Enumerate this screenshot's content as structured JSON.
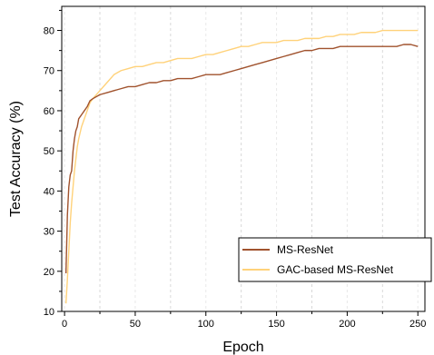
{
  "chart_data": {
    "type": "line",
    "title": "",
    "xlabel": "Epoch",
    "ylabel": "Test Accuracy (%)",
    "xlim": [
      -2,
      255
    ],
    "ylim": [
      10,
      86
    ],
    "xticks": [
      0,
      50,
      100,
      150,
      200,
      250
    ],
    "yticks": [
      10,
      20,
      30,
      40,
      50,
      60,
      70,
      80
    ],
    "grid": "vertical dashed",
    "legend_position": "bottom-right",
    "series": [
      {
        "name": "MS-ResNet",
        "color": "#a0522d",
        "points": [
          [
            1,
            19.5
          ],
          [
            2,
            34
          ],
          [
            3,
            41
          ],
          [
            4,
            44
          ],
          [
            5,
            45
          ],
          [
            6,
            50
          ],
          [
            7,
            53
          ],
          [
            8,
            55
          ],
          [
            9,
            56
          ],
          [
            10,
            58
          ],
          [
            12,
            59
          ],
          [
            14,
            60
          ],
          [
            16,
            61
          ],
          [
            18,
            62.5
          ],
          [
            20,
            63
          ],
          [
            25,
            64
          ],
          [
            30,
            64.5
          ],
          [
            35,
            65
          ],
          [
            40,
            65.5
          ],
          [
            45,
            66
          ],
          [
            50,
            66
          ],
          [
            55,
            66.5
          ],
          [
            60,
            67
          ],
          [
            65,
            67
          ],
          [
            70,
            67.5
          ],
          [
            75,
            67.5
          ],
          [
            80,
            68
          ],
          [
            85,
            68
          ],
          [
            90,
            68
          ],
          [
            95,
            68.5
          ],
          [
            100,
            69
          ],
          [
            105,
            69
          ],
          [
            110,
            69
          ],
          [
            115,
            69.5
          ],
          [
            120,
            70
          ],
          [
            125,
            70.5
          ],
          [
            130,
            71
          ],
          [
            135,
            71.5
          ],
          [
            140,
            72
          ],
          [
            145,
            72.5
          ],
          [
            150,
            73
          ],
          [
            155,
            73.5
          ],
          [
            160,
            74
          ],
          [
            165,
            74.5
          ],
          [
            170,
            75
          ],
          [
            175,
            75
          ],
          [
            180,
            75.5
          ],
          [
            185,
            75.5
          ],
          [
            190,
            75.5
          ],
          [
            195,
            76
          ],
          [
            200,
            76
          ],
          [
            205,
            76
          ],
          [
            210,
            76
          ],
          [
            215,
            76
          ],
          [
            220,
            76
          ],
          [
            225,
            76
          ],
          [
            230,
            76
          ],
          [
            235,
            76
          ],
          [
            240,
            76.5
          ],
          [
            245,
            76.5
          ],
          [
            250,
            76
          ]
        ]
      },
      {
        "name": "GAC-based MS-ResNet",
        "color": "#ffd27a",
        "points": [
          [
            1,
            12
          ],
          [
            2,
            18
          ],
          [
            3,
            25
          ],
          [
            4,
            32
          ],
          [
            5,
            37
          ],
          [
            6,
            41
          ],
          [
            7,
            45
          ],
          [
            8,
            48
          ],
          [
            9,
            51
          ],
          [
            10,
            53
          ],
          [
            12,
            56
          ],
          [
            14,
            58
          ],
          [
            16,
            60
          ],
          [
            18,
            62
          ],
          [
            20,
            63
          ],
          [
            25,
            65
          ],
          [
            30,
            67
          ],
          [
            35,
            69
          ],
          [
            40,
            70
          ],
          [
            45,
            70.5
          ],
          [
            50,
            71
          ],
          [
            55,
            71
          ],
          [
            60,
            71.5
          ],
          [
            65,
            72
          ],
          [
            70,
            72
          ],
          [
            75,
            72.5
          ],
          [
            80,
            73
          ],
          [
            85,
            73
          ],
          [
            90,
            73
          ],
          [
            95,
            73.5
          ],
          [
            100,
            74
          ],
          [
            105,
            74
          ],
          [
            110,
            74.5
          ],
          [
            115,
            75
          ],
          [
            120,
            75.5
          ],
          [
            125,
            76
          ],
          [
            130,
            76
          ],
          [
            135,
            76.5
          ],
          [
            140,
            77
          ],
          [
            145,
            77
          ],
          [
            150,
            77
          ],
          [
            155,
            77.5
          ],
          [
            160,
            77.5
          ],
          [
            165,
            77.5
          ],
          [
            170,
            78
          ],
          [
            175,
            78
          ],
          [
            180,
            78
          ],
          [
            185,
            78.5
          ],
          [
            190,
            78.5
          ],
          [
            195,
            79
          ],
          [
            200,
            79
          ],
          [
            205,
            79
          ],
          [
            210,
            79.5
          ],
          [
            215,
            79.5
          ],
          [
            220,
            79.5
          ],
          [
            225,
            80
          ],
          [
            230,
            80
          ],
          [
            235,
            80
          ],
          [
            240,
            80
          ],
          [
            245,
            80
          ],
          [
            250,
            80
          ]
        ]
      }
    ]
  }
}
